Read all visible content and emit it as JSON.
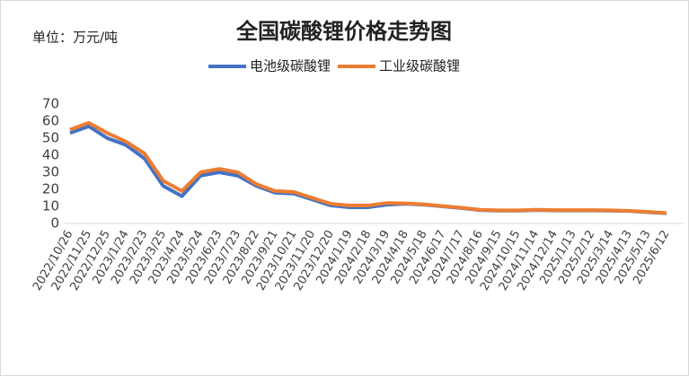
{
  "chart_data": {
    "type": "line",
    "title": "全国碳酸锂价格走势图",
    "unit_label": "单位：万元/吨",
    "categories": [
      "2022/10/26",
      "2022/11/25",
      "2022/12/25",
      "2023/1/24",
      "2023/2/23",
      "2023/3/25",
      "2023/4/24",
      "2023/5/24",
      "2023/6/23",
      "2023/7/23",
      "2023/8/22",
      "2023/9/21",
      "2023/10/21",
      "2023/11/20",
      "2023/12/20",
      "2024/1/19",
      "2024/2/18",
      "2024/3/19",
      "2024/4/18",
      "2024/5/18",
      "2024/6/17",
      "2024/7/17",
      "2024/8/16",
      "2024/9/15",
      "2024/10/15",
      "2024/11/14",
      "2024/12/14",
      "2025/1/13",
      "2025/2/12",
      "2025/3/14",
      "2025/4/13",
      "2025/5/13",
      "2025/6/12"
    ],
    "series": [
      {
        "name": "电池级碳酸锂",
        "color": "#4472c4",
        "values": [
          53,
          57,
          50,
          46,
          38,
          22,
          16,
          28,
          30,
          28,
          22,
          18,
          17.5,
          14,
          10.5,
          9.5,
          9.5,
          11,
          11.5,
          11,
          10,
          9,
          7.8,
          7.5,
          7.5,
          7.8,
          7.6,
          7.6,
          7.6,
          7.5,
          7.3,
          6.6,
          6
        ]
      },
      {
        "name": "工业级碳酸锂",
        "color": "#ed7d31",
        "values": [
          55,
          59,
          53,
          48,
          41,
          25,
          19,
          30,
          32,
          30,
          23,
          19,
          18.5,
          15,
          11.5,
          10.5,
          10.5,
          12,
          11.8,
          11.2,
          10.2,
          9.2,
          8,
          7.7,
          7.7,
          8,
          7.8,
          7.8,
          7.8,
          7.7,
          7.4,
          6.8,
          6.1
        ]
      }
    ],
    "ylim": [
      0,
      70
    ],
    "yticks": [
      0,
      10,
      20,
      30,
      40,
      50,
      60,
      70
    ],
    "grid": false,
    "legend": "top"
  }
}
